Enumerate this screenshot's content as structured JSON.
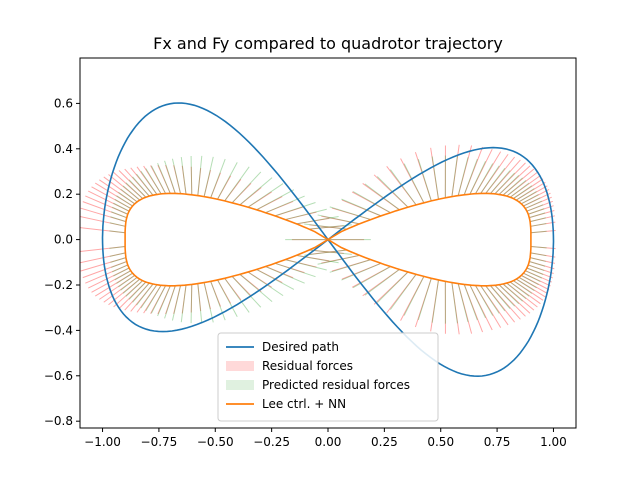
{
  "chart_data": {
    "type": "line",
    "title": "Fx and Fy compared to quadrotor trajectory",
    "xlabel": "",
    "ylabel": "",
    "xlim": [
      -1.1,
      1.1
    ],
    "ylim": [
      -0.83,
      0.8
    ],
    "xticks": [
      -1.0,
      -0.75,
      -0.5,
      -0.25,
      0.0,
      0.25,
      0.5,
      0.75,
      1.0
    ],
    "yticks": [
      -0.8,
      -0.6,
      -0.4,
      -0.2,
      0.0,
      0.2,
      0.4,
      0.6
    ],
    "xtick_labels": [
      "−1.00",
      "−0.75",
      "−0.50",
      "−0.25",
      "0.00",
      "0.25",
      "0.50",
      "0.75",
      "1.00"
    ],
    "ytick_labels": [
      "−0.8",
      "−0.6",
      "−0.4",
      "−0.2",
      "0.0",
      "0.2",
      "0.4",
      "0.6"
    ],
    "grid": false,
    "legend_position": "bottom-center",
    "series": [
      {
        "name": "Desired path",
        "kind": "line",
        "color": "#1f77b4",
        "parametric": {
          "x_amplitude": 1.0,
          "y_amplitude": 0.55,
          "rotation_deg": -8,
          "note_shape": "figure-eight (lemniscate)"
        }
      },
      {
        "name": "Residual forces",
        "kind": "quiver",
        "color": "#ff0000",
        "alpha": 0.15
      },
      {
        "name": "Predicted residual forces",
        "kind": "quiver",
        "color": "#2ca02c",
        "alpha": 0.15
      },
      {
        "name": "Lee ctrl. + NN",
        "kind": "line",
        "color": "#ff7f0e",
        "parametric": {
          "x_amplitude": 0.9,
          "y_amplitude": 0.37
        }
      }
    ]
  }
}
